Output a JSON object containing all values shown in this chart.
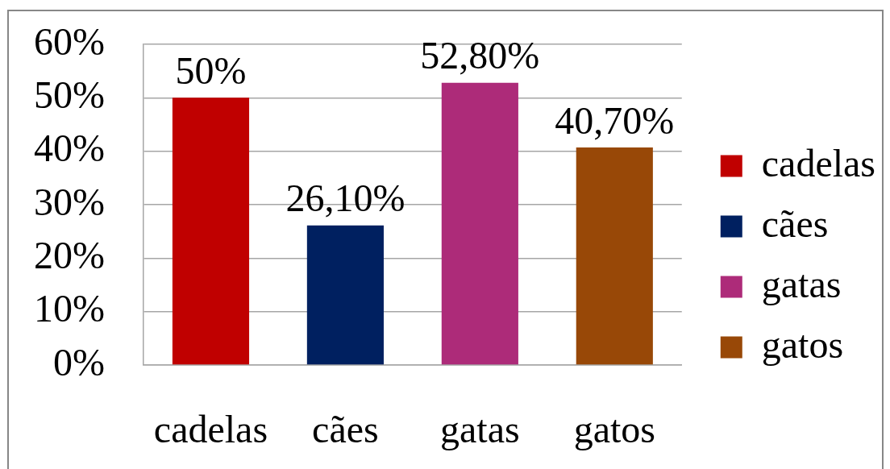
{
  "chart_data": {
    "type": "bar",
    "categories": [
      "cadelas",
      "cães",
      "gatas",
      "gatos"
    ],
    "series": [
      {
        "name": "cadelas",
        "color": "#c00000",
        "values": [
          50,
          null,
          null,
          null
        ],
        "value_labels": [
          "50%",
          null,
          null,
          null
        ]
      },
      {
        "name": "cães",
        "color": "#002060",
        "values": [
          null,
          26.1,
          null,
          null
        ],
        "value_labels": [
          null,
          "26,10%",
          null,
          null
        ]
      },
      {
        "name": "gatas",
        "color": "#ad2b79",
        "values": [
          null,
          null,
          52.8,
          null
        ],
        "value_labels": [
          null,
          null,
          "52,80%",
          null
        ]
      },
      {
        "name": "gatos",
        "color": "#984807",
        "values": [
          null,
          null,
          null,
          40.7
        ],
        "value_labels": [
          null,
          null,
          null,
          "40,70%"
        ]
      }
    ],
    "ylim": [
      0,
      60
    ],
    "yticks": [
      {
        "value": 0,
        "label": "0%"
      },
      {
        "value": 10,
        "label": "10%"
      },
      {
        "value": 20,
        "label": "20%"
      },
      {
        "value": 30,
        "label": "30%"
      },
      {
        "value": 40,
        "label": "40%"
      },
      {
        "value": 50,
        "label": "50%"
      },
      {
        "value": 60,
        "label": "60%"
      }
    ],
    "grid": "y",
    "legend": "right"
  }
}
